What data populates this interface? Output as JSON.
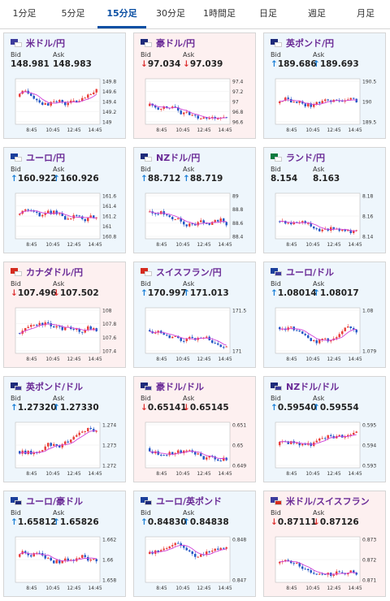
{
  "tabs": [
    "1分足",
    "5分足",
    "15分足",
    "30分足",
    "1時間足",
    "日足",
    "週足",
    "月足"
  ],
  "active_tab": 2,
  "labels": {
    "bid": "Bid",
    "ask": "Ask"
  },
  "pairs": [
    {
      "name": "米ドル/円",
      "bid": "148.981",
      "ask": "148.983",
      "dir": "none",
      "flag": [
        "#3c3b9c",
        "#ffffff"
      ],
      "yticks": [
        "149.8",
        "149.6",
        "149.4",
        "149.2",
        "149"
      ],
      "xticks": [
        "8:45",
        "10:45",
        "12:45",
        "14:45"
      ]
    },
    {
      "name": "豪ドル/円",
      "bid": "97.034",
      "ask": "97.039",
      "dir": "down",
      "flag": [
        "#1d2a7a",
        "#ffffff"
      ],
      "yticks": [
        "97.4",
        "97.2",
        "97",
        "96.8",
        "96.6"
      ],
      "xticks": [
        "8:45",
        "10:45",
        "12:45",
        "14:45"
      ]
    },
    {
      "name": "英ポンド/円",
      "bid": "189.686",
      "ask": "189.693",
      "dir": "up",
      "flag": [
        "#1d2a7a",
        "#ffffff"
      ],
      "yticks": [
        "190.5",
        "190",
        "189.5"
      ],
      "xticks": [
        "8:45",
        "10:45",
        "12:45",
        "14:45"
      ]
    },
    {
      "name": "ユーロ/円",
      "bid": "160.922",
      "ask": "160.926",
      "dir": "up",
      "flag": [
        "#1a3f9c",
        "#ffffff"
      ],
      "yticks": [
        "161.6",
        "161.4",
        "161.2",
        "161",
        "160.8"
      ],
      "xticks": [
        "8:45",
        "10:45",
        "12:45",
        "14:45"
      ]
    },
    {
      "name": "NZドル/円",
      "bid": "88.712",
      "ask": "88.719",
      "dir": "up",
      "flag": [
        "#1d2a7a",
        "#ffffff"
      ],
      "yticks": [
        "89",
        "88.8",
        "88.6",
        "88.4"
      ],
      "xticks": [
        "8:45",
        "10:45",
        "12:45",
        "14:45"
      ]
    },
    {
      "name": "ランド/円",
      "bid": "8.154",
      "ask": "8.163",
      "dir": "none",
      "flag": [
        "#0d7a3e",
        "#ffffff"
      ],
      "yticks": [
        "8.18",
        "8.16",
        "8.14"
      ],
      "xticks": [
        "8:45",
        "10:45",
        "12:45",
        "14:45"
      ]
    },
    {
      "name": "カナダドル/円",
      "bid": "107.496",
      "ask": "107.502",
      "dir": "down",
      "flag": [
        "#d52b1e",
        "#ffffff"
      ],
      "yticks": [
        "108",
        "107.8",
        "107.6",
        "107.4"
      ],
      "xticks": [
        "8:45",
        "10:45",
        "12:45",
        "14:45"
      ]
    },
    {
      "name": "スイスフラン/円",
      "bid": "170.997",
      "ask": "171.013",
      "dir": "up",
      "flag": [
        "#d52b1e",
        "#ffffff"
      ],
      "yticks": [
        "171.5",
        "171"
      ],
      "xticks": [
        "8:45",
        "10:45",
        "12:45",
        "14:45"
      ]
    },
    {
      "name": "ユーロ/ドル",
      "bid": "1.08014",
      "ask": "1.08017",
      "dir": "up",
      "flag": [
        "#1a3f9c",
        "#3c3b9c"
      ],
      "yticks": [
        "1.08",
        "1.079"
      ],
      "xticks": [
        "8:45",
        "10:45",
        "12:45",
        "14:45"
      ]
    },
    {
      "name": "英ポンド/ドル",
      "bid": "1.27320",
      "ask": "1.27330",
      "dir": "up",
      "flag": [
        "#1d2a7a",
        "#3c3b9c"
      ],
      "yticks": [
        "1.274",
        "1.273",
        "1.272"
      ],
      "xticks": [
        "8:45",
        "10:45",
        "12:45",
        "14:45"
      ]
    },
    {
      "name": "豪ドル/ドル",
      "bid": "0.65141",
      "ask": "0.65145",
      "dir": "down",
      "flag": [
        "#1d2a7a",
        "#3c3b9c"
      ],
      "yticks": [
        "0.651",
        "0.65",
        "0.649"
      ],
      "xticks": [
        "8:45",
        "10:45",
        "12:45",
        "14:45"
      ]
    },
    {
      "name": "NZドル/ドル",
      "bid": "0.59540",
      "ask": "0.59554",
      "dir": "up",
      "flag": [
        "#1d2a7a",
        "#3c3b9c"
      ],
      "yticks": [
        "0.595",
        "0.594",
        "0.593"
      ],
      "xticks": [
        "8:45",
        "10:45",
        "12:45",
        "14:45"
      ]
    },
    {
      "name": "ユーロ/豪ドル",
      "bid": "1.65812",
      "ask": "1.65826",
      "dir": "up",
      "flag": [
        "#1a3f9c",
        "#1d2a7a"
      ],
      "yticks": [
        "1.662",
        "1.66",
        "1.658"
      ],
      "xticks": [
        "8:45",
        "10:45",
        "12:45",
        "14:45"
      ]
    },
    {
      "name": "ユーロ/英ポンド",
      "bid": "0.84830",
      "ask": "0.84838",
      "dir": "up",
      "flag": [
        "#1a3f9c",
        "#1d2a7a"
      ],
      "yticks": [
        "0.848",
        "0.847"
      ],
      "xticks": [
        "8:45",
        "10:45",
        "12:45",
        "14:45"
      ]
    },
    {
      "name": "米ドル/スイスフラン",
      "bid": "0.87111",
      "ask": "0.87126",
      "dir": "down",
      "flag": [
        "#3c3b9c",
        "#d52b1e"
      ],
      "yticks": [
        "0.873",
        "0.872",
        "0.871"
      ],
      "xticks": [
        "8:45",
        "10:45",
        "12:45",
        "14:45"
      ]
    }
  ],
  "colors": {
    "up": "#e8403a",
    "down": "#2457c5",
    "ma": "#d040d8",
    "up_arrow": "#1a7fd6",
    "down_arrow": "#d33"
  }
}
